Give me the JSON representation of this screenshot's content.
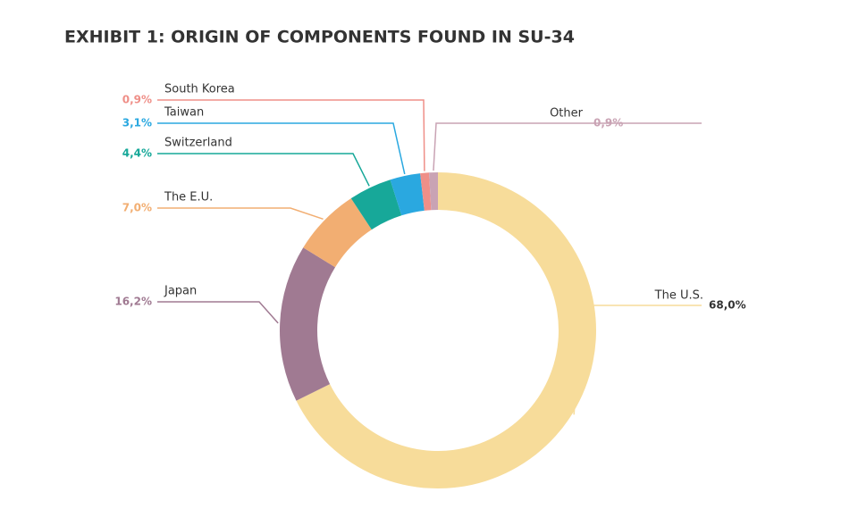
{
  "chart_data": {
    "type": "pie",
    "donut": true,
    "title": "EXHIBIT 1: ORIGIN OF COMPONENTS FOUND IN SU-34",
    "categories": [
      "The U.S.",
      "Japan",
      "The E.U.",
      "Switzerland",
      "Taiwan",
      "South Korea",
      "Other"
    ],
    "values": [
      68.0,
      16.2,
      7.0,
      4.4,
      3.1,
      0.9,
      0.9
    ],
    "value_labels": [
      "68,0%",
      "16,2%",
      "7,0%",
      "4,4%",
      "3,1%",
      "0,9%",
      "0,9%"
    ],
    "colors": [
      "#f7dc9a",
      "#a07a92",
      "#f2ae72",
      "#17a899",
      "#2aa8e0",
      "#ef8f88",
      "#c9a3b4"
    ],
    "label_colors": [
      "#333333",
      "#a07a92",
      "#f2ae72",
      "#17a899",
      "#2aa8e0",
      "#ef8f88",
      "#c9a3b4"
    ]
  }
}
